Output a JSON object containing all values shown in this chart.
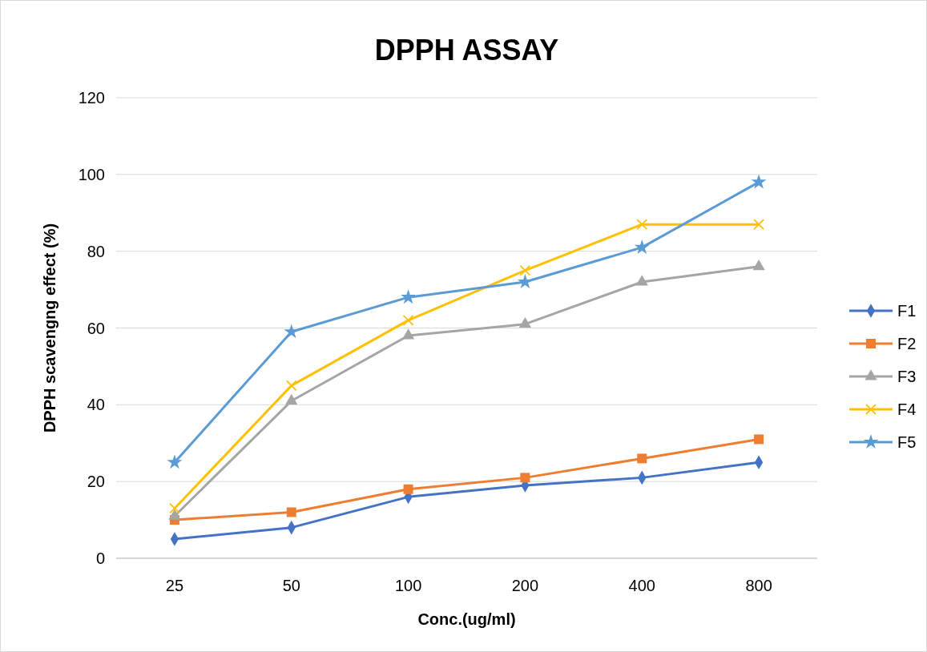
{
  "chart_data": {
    "type": "line",
    "title": "DPPH ASSAY",
    "xlabel": "Conc.(ug/ml)",
    "ylabel": "DPPH scavengng effect (%)",
    "categories": [
      "25",
      "50",
      "100",
      "200",
      "400",
      "800"
    ],
    "series": [
      {
        "name": "F1",
        "color": "#4472c4",
        "marker": "diamond",
        "values": [
          5,
          8,
          16,
          19,
          21,
          25
        ]
      },
      {
        "name": "F2",
        "color": "#ed7d31",
        "marker": "square",
        "values": [
          10,
          12,
          18,
          21,
          26,
          31
        ]
      },
      {
        "name": "F3",
        "color": "#a5a5a5",
        "marker": "triangle",
        "values": [
          11,
          41,
          58,
          61,
          72,
          76
        ]
      },
      {
        "name": "F4",
        "color": "#ffc000",
        "marker": "cross",
        "values": [
          13,
          45,
          62,
          75,
          87,
          87
        ]
      },
      {
        "name": "F5",
        "color": "#5b9bd5",
        "marker": "star",
        "values": [
          25,
          59,
          68,
          72,
          81,
          98
        ]
      }
    ],
    "ylim": [
      0,
      120
    ],
    "yticks": [
      0,
      20,
      40,
      60,
      80,
      100,
      120
    ],
    "grid": "y",
    "legend": "right",
    "line_style": "solid"
  }
}
